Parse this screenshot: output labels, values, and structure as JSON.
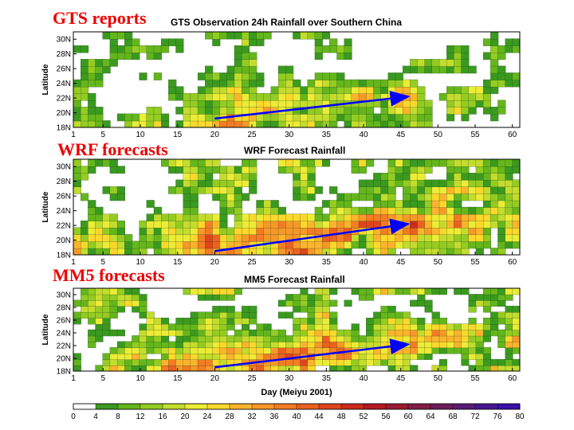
{
  "chart_data": {
    "type": "heatmap",
    "xlabel": "Day (Meiyu 2001)",
    "ylabel": "Latitude",
    "xlim": [
      1,
      61
    ],
    "ylim": [
      18,
      31
    ],
    "x_ticks": [
      "1",
      "5",
      "10",
      "15",
      "20",
      "25",
      "30",
      "35",
      "40",
      "45",
      "50",
      "55",
      "60"
    ],
    "y_ticks": [
      "18N",
      "20N",
      "22N",
      "24N",
      "26N",
      "28N",
      "30N"
    ],
    "panels": [
      {
        "label": "GTS reports",
        "title": "GTS Observation 24h Rainfall over Southern China",
        "trend_arrow": {
          "from": [
            20,
            19.2
          ],
          "to": [
            46,
            22.2
          ],
          "color": "#0000ff"
        }
      },
      {
        "label": "WRF forecasts",
        "title": "WRF Forecast Rainfall",
        "trend_arrow": {
          "from": [
            20,
            18.5
          ],
          "to": [
            46,
            22.2
          ],
          "color": "#0000ff"
        }
      },
      {
        "label": "MM5 forecasts",
        "title": "MM5 Forecast Rainfall",
        "trend_arrow": {
          "from": [
            20,
            18.6
          ],
          "to": [
            46,
            22.2
          ],
          "color": "#0000ff"
        }
      }
    ],
    "colorbar": {
      "ticks": [
        "0",
        "4",
        "8",
        "12",
        "16",
        "20",
        "24",
        "28",
        "32",
        "36",
        "40",
        "44",
        "48",
        "52",
        "56",
        "60",
        "64",
        "68",
        "72",
        "76",
        "80"
      ],
      "colors": [
        "#ffffff",
        "#3a9a1f",
        "#64b61c",
        "#94cc22",
        "#c4dc2e",
        "#ecec36",
        "#fcd82c",
        "#fcb42c",
        "#f89828",
        "#f47c24",
        "#ec6020",
        "#e0441c",
        "#cc2a1c",
        "#b41820",
        "#9c1a30",
        "#841c44",
        "#6c1c58",
        "#581c74",
        "#461890",
        "#3a10a8"
      ]
    }
  }
}
